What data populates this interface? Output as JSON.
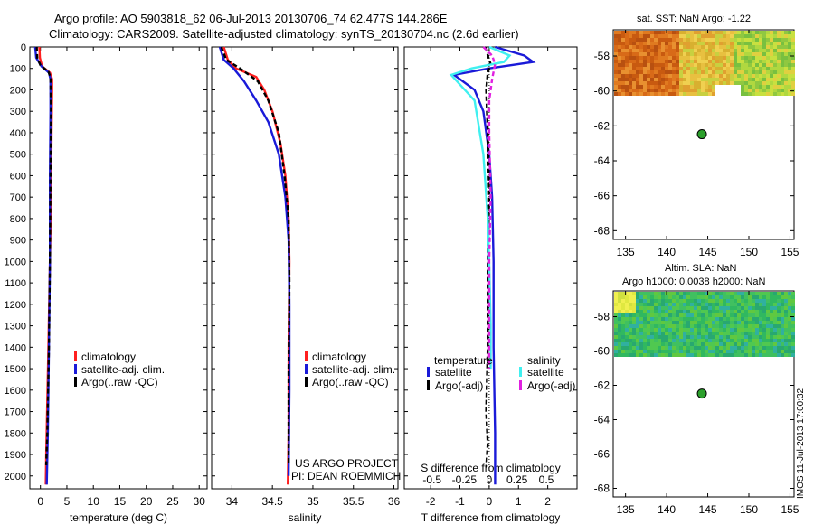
{
  "title_line1": "Argo profile: AO 5903818_62 06-Jul-2013 20130706_74 62.477S 144.286E",
  "title_line2": "Climatology: CARS2009. Satellite-adjusted climatology: synTS_20130704.nc (2.6d earlier)",
  "colors": {
    "clim": "#ff2020",
    "sat": "#1a1ad8",
    "argo": "#000000",
    "sat_s": "#40f0f0",
    "argo_s": "#e020e0"
  },
  "chart_data": [
    {
      "type": "line",
      "xlabel": "temperature (deg C)",
      "xticks": [
        0,
        5,
        10,
        15,
        20,
        25,
        30
      ],
      "xlim": [
        -2,
        31.5
      ],
      "ylim": [
        2060,
        0
      ],
      "yticks": [
        0,
        100,
        200,
        300,
        400,
        500,
        600,
        700,
        800,
        900,
        1000,
        1100,
        1200,
        1300,
        1400,
        1500,
        1600,
        1700,
        1800,
        1900,
        2000
      ],
      "legend": [
        "climatology",
        "satellite-adj. clim.",
        "Argo(..raw -QC)"
      ],
      "series": [
        {
          "name": "climatology",
          "color": "clim",
          "x": [
            -0.2,
            -0.1,
            0.3,
            1.8,
            2.2,
            2.2,
            2.1,
            2.0,
            1.8,
            1.5,
            1.1,
            1.0
          ],
          "y": [
            0,
            50,
            90,
            120,
            150,
            200,
            400,
            700,
            1000,
            1400,
            1900,
            2040
          ]
        },
        {
          "name": "satellite-adj. clim.",
          "color": "sat",
          "x": [
            -1.0,
            -0.8,
            0.2,
            1.6,
            1.9,
            1.9,
            1.8,
            1.8,
            1.6,
            1.4,
            1.2
          ],
          "y": [
            0,
            50,
            90,
            120,
            150,
            300,
            600,
            1000,
            1400,
            1800,
            2040
          ]
        },
        {
          "name": "Argo(..raw -QC)",
          "color": "argo",
          "x": [
            -0.7,
            -0.6,
            0.0,
            1.5,
            1.9,
            2.0,
            1.9,
            1.8,
            1.6,
            1.3,
            1.1
          ],
          "y": [
            0,
            50,
            85,
            115,
            140,
            300,
            600,
            1000,
            1400,
            1800,
            1950
          ]
        }
      ]
    },
    {
      "type": "line",
      "xlabel": "salinity",
      "xticks": [
        34,
        34.5,
        35,
        35.5,
        36
      ],
      "xlim": [
        33.75,
        36.05
      ],
      "ylim": [
        2060,
        0
      ],
      "legend": [
        "climatology",
        "satellite-adj. clim.",
        "Argo(..raw -QC)"
      ],
      "note_line1": "US ARGO PROJECT",
      "note_line2": "PI: DEAN ROEMMICH",
      "series": [
        {
          "name": "climatology",
          "color": "clim",
          "x": [
            33.9,
            33.95,
            34.05,
            34.3,
            34.4,
            34.5,
            34.6,
            34.66,
            34.7,
            34.71,
            34.7,
            34.7,
            34.69
          ],
          "y": [
            0,
            60,
            100,
            140,
            200,
            300,
            450,
            600,
            800,
            1000,
            1400,
            1800,
            2040
          ]
        },
        {
          "name": "satellite-adj. clim.",
          "color": "sat",
          "x": [
            33.85,
            33.9,
            34.02,
            34.15,
            34.3,
            34.45,
            34.58,
            34.66,
            34.7,
            34.71,
            34.71,
            34.7
          ],
          "y": [
            0,
            60,
            100,
            160,
            250,
            350,
            500,
            700,
            900,
            1200,
            1600,
            2000
          ]
        },
        {
          "name": "Argo(..raw -QC)",
          "color": "argo",
          "x": [
            33.87,
            33.93,
            34.1,
            34.32,
            34.45,
            34.58,
            34.65,
            34.7,
            34.71,
            34.7,
            34.7
          ],
          "y": [
            0,
            60,
            100,
            160,
            250,
            400,
            600,
            800,
            1100,
            1500,
            1950
          ]
        }
      ]
    },
    {
      "type": "line",
      "xlabel": "T difference from climatology",
      "x2label": "S difference from climatology",
      "xticks": [
        -2,
        -1,
        0,
        1,
        2
      ],
      "x2ticks": [
        "-0.5",
        "-0.25",
        "0",
        "0.25",
        "0.5"
      ],
      "xlim": [
        -2.9,
        3.0
      ],
      "ylim": [
        2060,
        0
      ],
      "legend_headers": [
        "temperature",
        "salinity"
      ],
      "legend": [
        "satellite",
        "Argo(-adj)",
        "satellite",
        "Argo(-adj)"
      ],
      "series": [
        {
          "name": "satellite",
          "group": "temperature",
          "color": "sat",
          "x": [
            0.2,
            1.2,
            1.5,
            0.0,
            -1.2,
            -0.5,
            -0.2,
            0.0,
            0.1,
            0.15,
            0.15,
            0.2,
            0.2
          ],
          "y": [
            0,
            40,
            70,
            100,
            130,
            200,
            300,
            500,
            700,
            1000,
            1400,
            1800,
            2040
          ]
        },
        {
          "name": "Argo(-adj)",
          "group": "temperature",
          "color": "argo",
          "x": [
            -0.1,
            -0.05,
            0.05,
            -0.05,
            -0.1,
            -0.05,
            0.0,
            -0.05,
            -0.05,
            -0.1,
            -0.05,
            -0.1
          ],
          "y": [
            0,
            40,
            80,
            120,
            200,
            400,
            700,
            1000,
            1400,
            1700,
            1850,
            1960
          ]
        },
        {
          "name": "satellite",
          "group": "salinity",
          "color": "sat_s",
          "x": [
            0.0,
            0.7,
            0.5,
            -0.6,
            -1.3,
            -0.5,
            -0.2,
            -0.05,
            0.0,
            0.05,
            0.05
          ],
          "y": [
            0,
            40,
            70,
            100,
            130,
            250,
            500,
            800,
            1000,
            1300,
            1500
          ]
        },
        {
          "name": "Argo(-adj)",
          "group": "salinity",
          "color": "argo_s",
          "x": [
            -0.2,
            0.1,
            0.2,
            0.1,
            0.0,
            0.0,
            0.05,
            0.0,
            0.0,
            0.0
          ],
          "y": [
            0,
            40,
            80,
            150,
            250,
            400,
            700,
            1000,
            1300,
            1500
          ]
        }
      ]
    }
  ],
  "map_sst": {
    "title": "sat. SST: NaN Argo: -1.22",
    "yticks": [
      -58,
      -60,
      -62,
      -64,
      -66,
      -68
    ],
    "xticks": [
      135,
      140,
      145,
      150,
      155
    ],
    "argo_lon": 144.286,
    "argo_lat": -62.477
  },
  "map_sla": {
    "title_line1": "Altim. SLA: NaN",
    "title_line2": "Argo h1000: 0.0038 h2000: NaN",
    "yticks": [
      -58,
      -60,
      -62,
      -64,
      -66,
      -68
    ],
    "xticks": [
      135,
      140,
      145,
      150,
      155
    ],
    "argo_lon": 144.286,
    "argo_lat": -62.477
  },
  "stamp": "IMOS 11-Jul-2013 17:00:32"
}
